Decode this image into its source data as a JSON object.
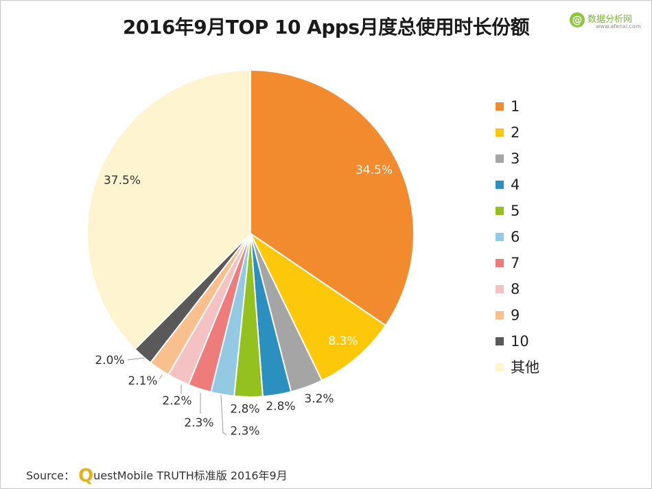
{
  "title": "2016年9月TOP 10 Apps月度总使用时长份额",
  "brand": {
    "logo_glyph": "@",
    "name": "数据分析网",
    "url": "www.afenxi.com"
  },
  "source": {
    "prefix": "Source：",
    "q": "Q",
    "text": "uestMobile TRUTH标准版 2016年9月"
  },
  "chart_data": {
    "type": "pie",
    "start_angle_deg": 0,
    "direction": "clockwise",
    "legend_position": "right",
    "slices": [
      {
        "label": "1",
        "value": 34.5,
        "value_label": "34.5%",
        "color": "#f28a2e",
        "label_style": "inside-light"
      },
      {
        "label": "2",
        "value": 8.3,
        "value_label": "8.3%",
        "color": "#fdc70a",
        "label_style": "inside-light"
      },
      {
        "label": "3",
        "value": 3.2,
        "value_label": "3.2%",
        "color": "#a5a5a5",
        "label_style": "outside"
      },
      {
        "label": "4",
        "value": 2.8,
        "value_label": "2.8%",
        "color": "#2b8fc0",
        "label_style": "outside"
      },
      {
        "label": "5",
        "value": 2.8,
        "value_label": "2.8%",
        "color": "#95c11f",
        "label_style": "outside"
      },
      {
        "label": "6",
        "value": 2.3,
        "value_label": "2.3%",
        "color": "#93c9e2",
        "label_style": "outside-leader"
      },
      {
        "label": "7",
        "value": 2.3,
        "value_label": "2.3%",
        "color": "#ee7c7b",
        "label_style": "outside-leader"
      },
      {
        "label": "8",
        "value": 2.2,
        "value_label": "2.2%",
        "color": "#f5c2c4",
        "label_style": "outside-leader"
      },
      {
        "label": "9",
        "value": 2.1,
        "value_label": "2.1%",
        "color": "#f9c08e",
        "label_style": "outside-leader"
      },
      {
        "label": "10",
        "value": 2.0,
        "value_label": "2.0%",
        "color": "#595959",
        "label_style": "outside-leader"
      },
      {
        "label": "其他",
        "value": 37.5,
        "value_label": "37.5%",
        "color": "#fef4cf",
        "label_style": "inside-dark"
      }
    ]
  }
}
